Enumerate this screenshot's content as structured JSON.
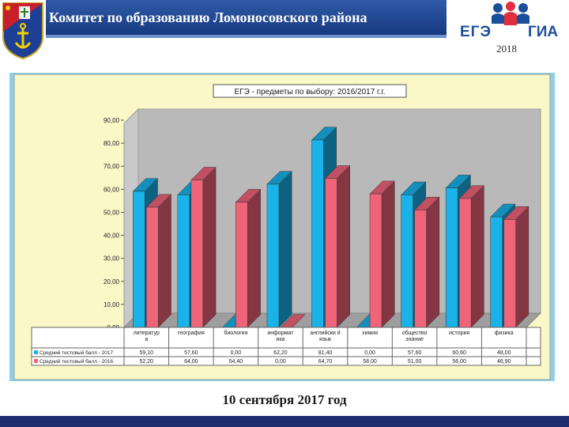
{
  "header": {
    "title": "Комитет по образованию Ломоносовского района",
    "logo_left": "ЕГЭ",
    "logo_right": "ГИА",
    "logo_year": "2018"
  },
  "footer": {
    "date_text": "10 сентября 2017 год"
  },
  "colors": {
    "series_2017": "#19b3ea",
    "series_2016": "#f0647a",
    "chart_bg": "#fbf8c8",
    "frame": "#8fd0e8"
  },
  "chart_data": {
    "type": "bar",
    "title": "ЕГЭ - предметы по выбору: 2016/2017 г.г.",
    "categories": [
      "литератур а",
      "география",
      "биология",
      "информат ика",
      "английски й язык",
      "химия",
      "общество знание",
      "история",
      "физика"
    ],
    "series": [
      {
        "name": "Средний тестовый балл - 2017",
        "values": [
          59.1,
          57.6,
          0,
          62.2,
          81.4,
          0,
          57.6,
          60.6,
          48.0
        ],
        "labels": [
          "59,10",
          "57,60",
          "0,00",
          "62,20",
          "81,40",
          "0,00",
          "57,60",
          "60,60",
          "48,00"
        ]
      },
      {
        "name": "Средний тестовый балл - 2016",
        "values": [
          52.2,
          64.0,
          54.4,
          0,
          64.7,
          58.0,
          51.0,
          56.0,
          46.9
        ],
        "labels": [
          "52,20",
          "64,00",
          "54,40",
          "0,00",
          "64,70",
          "58,00",
          "51,00",
          "56,00",
          "46,90"
        ]
      }
    ],
    "yticks": [
      "0,00",
      "10,00",
      "20,00",
      "30,00",
      "40,00",
      "50,00",
      "60,00",
      "70,00",
      "80,00",
      "90,00"
    ],
    "ylim": [
      0,
      90
    ],
    "grid": false,
    "legend": "table-below"
  }
}
